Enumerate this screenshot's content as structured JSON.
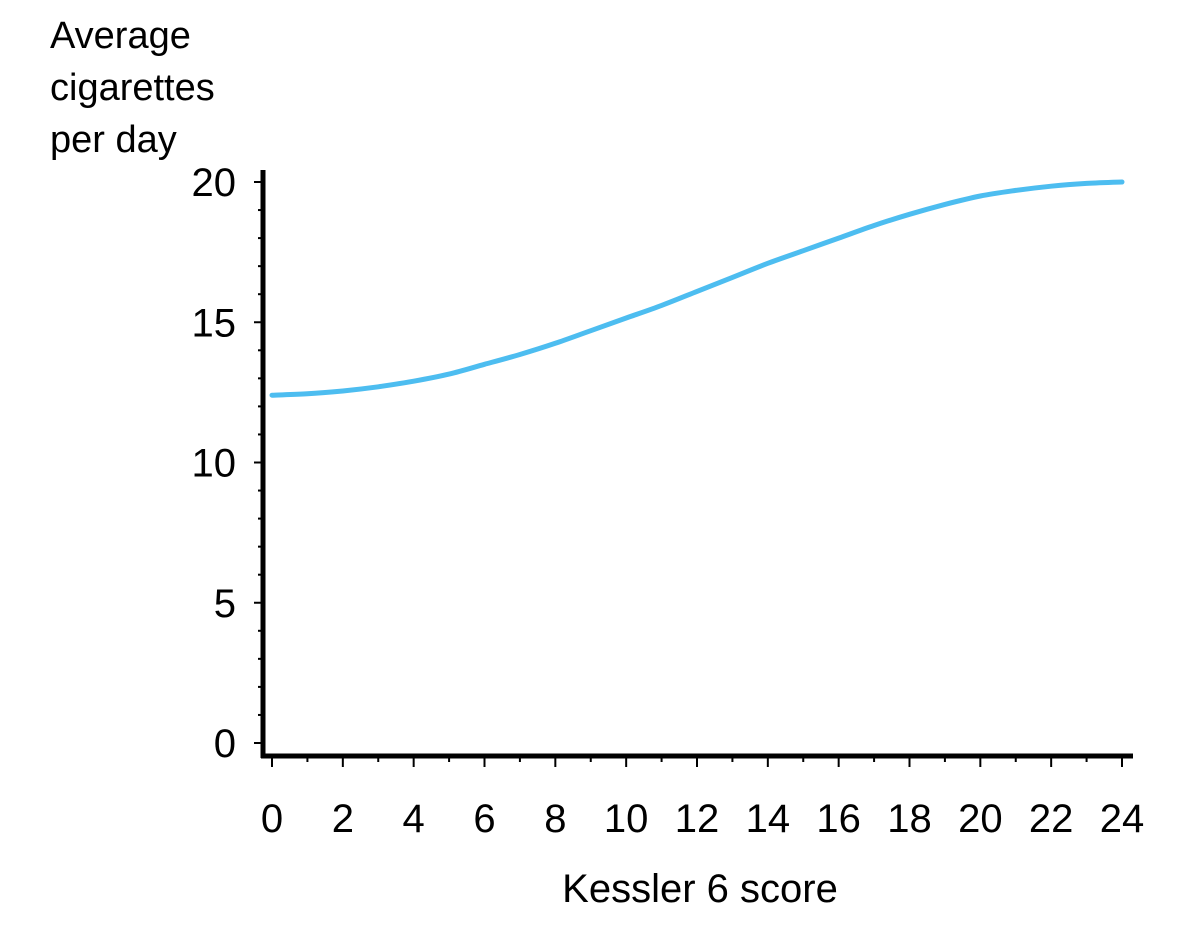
{
  "chart_data": {
    "type": "line",
    "ylabel_lines": [
      "Average",
      "cigarettes",
      "per day"
    ],
    "xlabel": "Kessler 6 score",
    "xlim": [
      0,
      24
    ],
    "ylim": [
      0,
      20
    ],
    "x_ticks": [
      0,
      2,
      4,
      6,
      8,
      10,
      12,
      14,
      16,
      18,
      20,
      22,
      24
    ],
    "y_ticks": [
      0,
      5,
      10,
      15,
      20
    ],
    "grid": false,
    "series": [
      {
        "color": "#4dbdf0",
        "x": [
          0,
          1,
          2,
          3,
          4,
          5,
          6,
          7,
          8,
          9,
          10,
          11,
          12,
          13,
          14,
          15,
          16,
          17,
          18,
          19,
          20,
          21,
          22,
          23,
          24
        ],
        "y": [
          12.4,
          12.45,
          12.55,
          12.7,
          12.9,
          13.15,
          13.5,
          13.85,
          14.25,
          14.7,
          15.15,
          15.6,
          16.1,
          16.6,
          17.1,
          17.55,
          18.0,
          18.45,
          18.85,
          19.2,
          19.5,
          19.7,
          19.85,
          19.95,
          20.0
        ]
      }
    ]
  }
}
